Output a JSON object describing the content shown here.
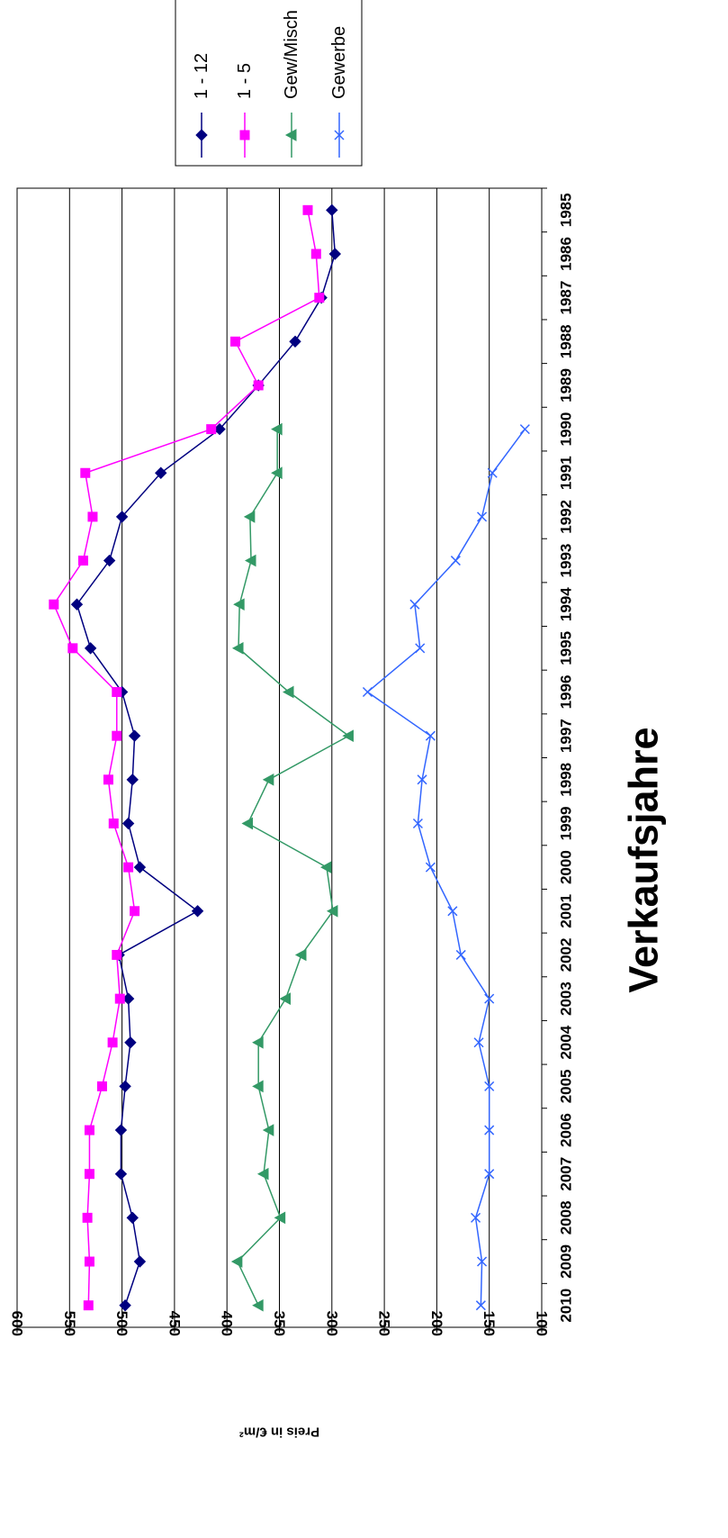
{
  "chart_data": {
    "type": "line",
    "orientation": "rotated-90-clockwise",
    "xlabel": "Verkaufsjahre",
    "ylabel": "Preis in €/m²",
    "ylim": [
      100,
      600
    ],
    "yticks": [
      "100",
      "150",
      "200",
      "250",
      "300",
      "350",
      "400",
      "450",
      "500",
      "550",
      "600"
    ],
    "grid": true,
    "legend_position": "top-right",
    "categories": [
      "1985",
      "1986",
      "1987",
      "1988",
      "1989",
      "1990",
      "1991",
      "1992",
      "1993",
      "1994",
      "1995",
      "1996",
      "1997",
      "1998",
      "1999",
      "2000",
      "2001",
      "2002",
      "2003",
      "2004",
      "2005",
      "2006",
      "2007",
      "2008",
      "2009",
      "2010"
    ],
    "series": [
      {
        "name": "1 - 12",
        "color": "#000080",
        "marker": "diamond",
        "values": [
          300,
          297,
          310,
          335,
          370,
          407,
          463,
          500,
          512,
          543,
          530,
          500,
          488,
          490,
          494,
          483,
          428,
          503,
          494,
          492,
          497,
          501,
          501,
          490,
          483,
          497
        ]
      },
      {
        "name": "1 - 5",
        "color": "#ff00ff",
        "marker": "square",
        "values": [
          323,
          315,
          312,
          392,
          370,
          415,
          535,
          528,
          537,
          565,
          547,
          505,
          505,
          513,
          508,
          494,
          488,
          505,
          502,
          509,
          519,
          531,
          531,
          533,
          531,
          532
        ]
      },
      {
        "name": "Gew/Misch",
        "color": "#339966",
        "marker": "triangle",
        "values": [
          null,
          null,
          null,
          null,
          null,
          352,
          352,
          378,
          377,
          388,
          389,
          341,
          284,
          360,
          380,
          305,
          299,
          329,
          344,
          370,
          370,
          360,
          365,
          349,
          390,
          370
        ]
      },
      {
        "name": "Gewerbe",
        "color": "#3366ff",
        "marker": "x",
        "values": [
          null,
          null,
          null,
          null,
          null,
          116,
          147,
          157,
          182,
          221,
          216,
          266,
          206,
          214,
          218,
          206,
          185,
          177,
          150,
          160,
          150,
          150,
          150,
          163,
          157,
          158
        ]
      }
    ]
  }
}
